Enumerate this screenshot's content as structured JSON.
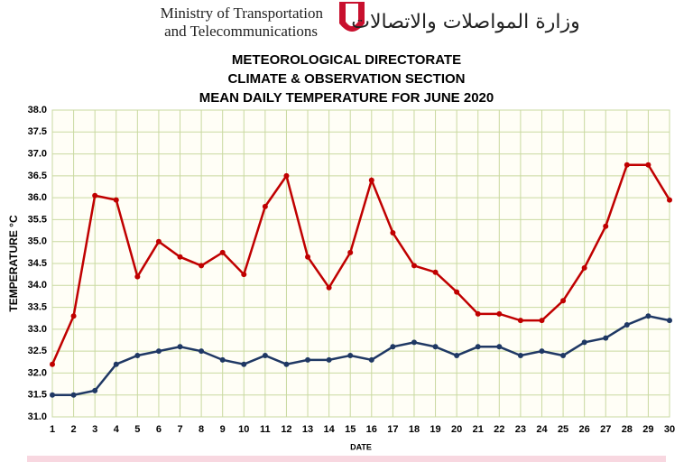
{
  "header": {
    "ministry_en": [
      "Ministry of Transportation",
      "and Telecommunications"
    ],
    "ministry_ar": "وزارة المواصلات والاتصالات"
  },
  "chart_data": {
    "type": "line",
    "title": [
      "METEOROLOGICAL DIRECTORATE",
      "CLIMATE & OBSERVATION SECTION",
      "MEAN DAILY TEMPERATURE FOR JUNE 2020"
    ],
    "x_label": "DATE",
    "y_label": "TEMPERATURE °C",
    "x": [
      1,
      2,
      3,
      4,
      5,
      6,
      7,
      8,
      9,
      10,
      11,
      12,
      13,
      14,
      15,
      16,
      17,
      18,
      19,
      20,
      21,
      22,
      23,
      24,
      25,
      26,
      27,
      28,
      29,
      30
    ],
    "xlim": [
      1,
      30
    ],
    "xticks": [
      1,
      2,
      3,
      4,
      5,
      6,
      7,
      8,
      9,
      10,
      11,
      12,
      13,
      14,
      15,
      16,
      17,
      18,
      19,
      20,
      21,
      22,
      23,
      24,
      25,
      26,
      27,
      28,
      29,
      30
    ],
    "ylim": [
      31,
      38
    ],
    "yticks": [
      {
        "value": 31,
        "label": "31.0"
      },
      31.5,
      {
        "value": 32,
        "label": "32.0"
      },
      32.5,
      {
        "value": 33,
        "label": "33.0"
      },
      33.5,
      {
        "value": 34,
        "label": "34.0"
      },
      34.5,
      {
        "value": 35,
        "label": "35.0"
      },
      35.5,
      {
        "value": 36,
        "label": "36.0"
      },
      36.5,
      {
        "value": 37,
        "label": "37.0"
      },
      37.5,
      {
        "value": 38,
        "label": "38.0"
      }
    ],
    "grid": true,
    "series": [
      {
        "color": "#c00000",
        "values": [
          32.2,
          33.3,
          36.05,
          35.95,
          34.2,
          35.0,
          34.65,
          34.45,
          34.75,
          34.25,
          35.8,
          36.5,
          34.65,
          33.95,
          34.75,
          36.4,
          35.2,
          34.45,
          34.3,
          33.85,
          33.35,
          33.35,
          33.2,
          33.2,
          33.65,
          34.4,
          35.35,
          36.75,
          36.75,
          35.95
        ]
      },
      {
        "color": "#1f3864",
        "values": [
          31.5,
          31.5,
          31.6,
          32.2,
          32.4,
          32.5,
          32.6,
          32.5,
          32.3,
          32.2,
          32.4,
          32.2,
          32.3,
          32.3,
          32.4,
          32.3,
          32.6,
          32.7,
          32.6,
          32.4,
          32.6,
          32.6,
          32.4,
          32.5,
          32.4,
          32.7,
          32.8,
          33.1,
          33.3,
          33.2
        ]
      }
    ]
  }
}
